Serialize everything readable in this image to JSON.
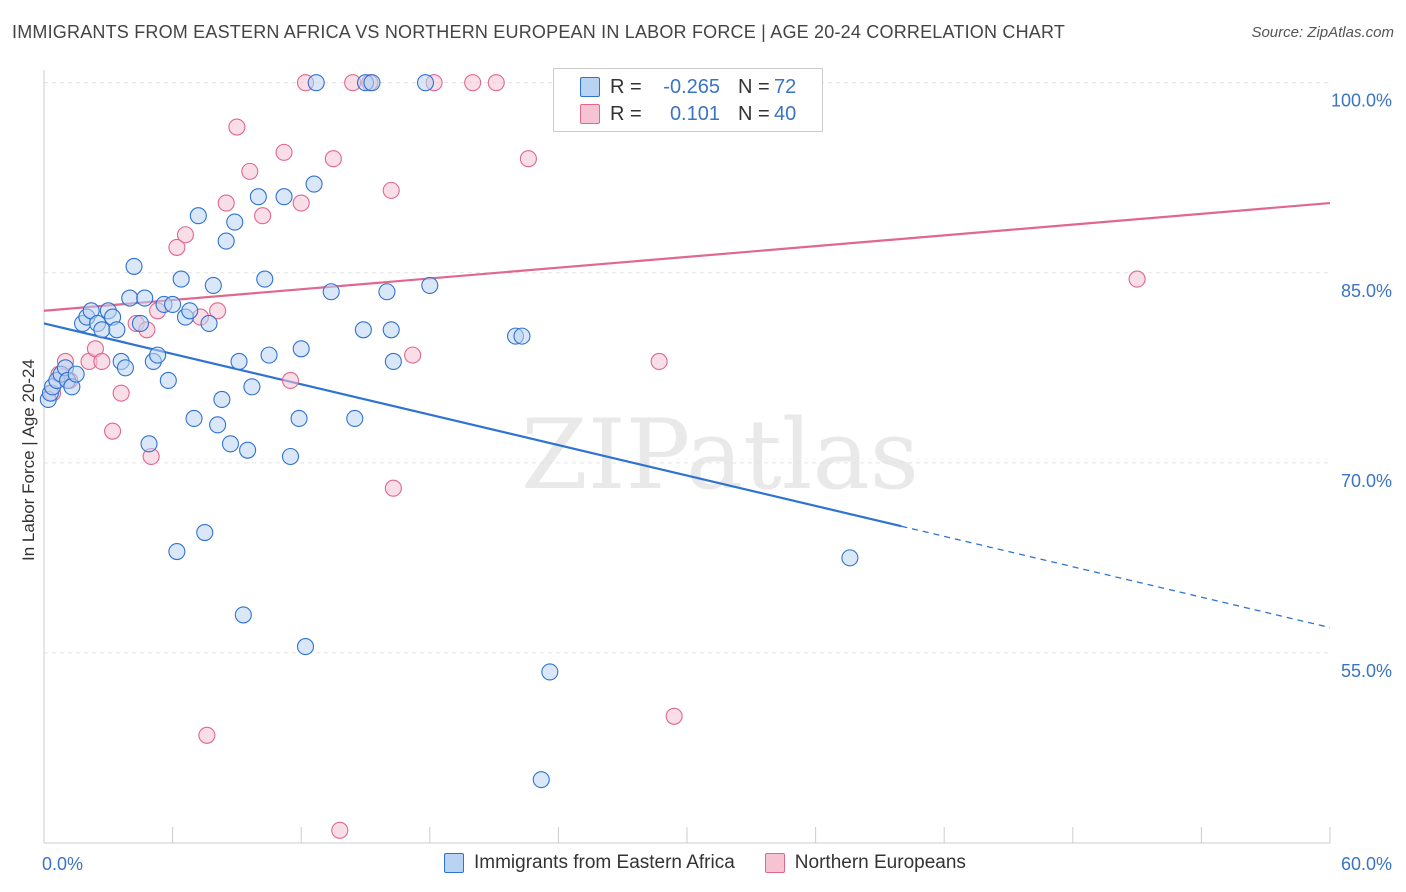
{
  "title": "IMMIGRANTS FROM EASTERN AFRICA VS NORTHERN EUROPEAN IN LABOR FORCE | AGE 20-24 CORRELATION CHART",
  "source": "Source: ZipAtlas.com",
  "watermark": "ZIPatlas",
  "colors": {
    "blue": "#2f73d2",
    "blue_fill": "#b9d3f2",
    "pink": "#e0678f",
    "pink_fill": "#f6c3d3",
    "axis_text": "#3a74c4",
    "grid": "#e3e3e3"
  },
  "legend": {
    "rows": [
      {
        "r_label": "R =",
        "r_value": "-0.265",
        "n_label": "N =",
        "n_value": "72",
        "series": "blue"
      },
      {
        "r_label": "R =",
        "r_value": "0.101",
        "n_label": "N =",
        "n_value": "40",
        "series": "pink"
      }
    ]
  },
  "bottom_legend": {
    "blue_label": "Immigrants from Eastern Africa",
    "pink_label": "Northern Europeans"
  },
  "chart_data": {
    "type": "scatter",
    "title": "IMMIGRANTS FROM EASTERN AFRICA VS NORTHERN EUROPEAN IN LABOR FORCE | AGE 20-24 CORRELATION CHART",
    "xlabel": "",
    "ylabel": "In Labor Force | Age 20-24",
    "xlim": [
      0,
      60
    ],
    "ylim": [
      40,
      101
    ],
    "x_tick_labels": [
      {
        "value": 0,
        "label": "0.0%"
      },
      {
        "value": 60,
        "label": "60.0%"
      }
    ],
    "y_tick_labels": [
      {
        "value": 100,
        "label": "100.0%"
      },
      {
        "value": 85,
        "label": "85.0%"
      },
      {
        "value": 70,
        "label": "70.0%"
      },
      {
        "value": 55,
        "label": "55.0%"
      }
    ],
    "grid": true,
    "series": [
      {
        "name": "Immigrants from Eastern Africa",
        "color": "blue",
        "trend": {
          "x0": 0,
          "y0": 81.0,
          "x1": 40,
          "y1": 65.0,
          "dash_to_x": 60,
          "dash_to_y": 57.0
        },
        "points": [
          [
            0.2,
            75.0
          ],
          [
            0.3,
            75.5
          ],
          [
            0.4,
            76.0
          ],
          [
            0.6,
            76.5
          ],
          [
            0.8,
            77.0
          ],
          [
            1.0,
            77.5
          ],
          [
            1.1,
            76.5
          ],
          [
            1.3,
            76.0
          ],
          [
            1.5,
            77.0
          ],
          [
            1.8,
            81.0
          ],
          [
            2.0,
            81.5
          ],
          [
            2.2,
            82.0
          ],
          [
            2.5,
            81.0
          ],
          [
            2.7,
            80.5
          ],
          [
            3.0,
            82.0
          ],
          [
            3.2,
            81.5
          ],
          [
            3.4,
            80.5
          ],
          [
            3.6,
            78.0
          ],
          [
            3.8,
            77.5
          ],
          [
            4.0,
            83.0
          ],
          [
            4.2,
            85.5
          ],
          [
            4.5,
            81.0
          ],
          [
            4.7,
            83.0
          ],
          [
            4.9,
            71.5
          ],
          [
            5.1,
            78.0
          ],
          [
            5.3,
            78.5
          ],
          [
            5.6,
            82.5
          ],
          [
            5.8,
            76.5
          ],
          [
            6.0,
            82.5
          ],
          [
            6.2,
            63.0
          ],
          [
            6.4,
            84.5
          ],
          [
            6.6,
            81.5
          ],
          [
            6.8,
            82.0
          ],
          [
            7.0,
            73.5
          ],
          [
            7.2,
            89.5
          ],
          [
            7.5,
            64.5
          ],
          [
            7.7,
            81.0
          ],
          [
            7.9,
            84.0
          ],
          [
            8.1,
            73.0
          ],
          [
            8.3,
            75.0
          ],
          [
            8.5,
            87.5
          ],
          [
            8.7,
            71.5
          ],
          [
            8.9,
            89.0
          ],
          [
            9.1,
            78.0
          ],
          [
            9.3,
            58.0
          ],
          [
            9.5,
            71.0
          ],
          [
            9.7,
            76.0
          ],
          [
            10.0,
            91.0
          ],
          [
            10.3,
            84.5
          ],
          [
            10.5,
            78.5
          ],
          [
            11.2,
            91.0
          ],
          [
            11.5,
            70.5
          ],
          [
            11.9,
            73.5
          ],
          [
            12.0,
            79.0
          ],
          [
            12.2,
            55.5
          ],
          [
            12.6,
            92.0
          ],
          [
            12.7,
            100.0
          ],
          [
            13.4,
            83.5
          ],
          [
            14.5,
            73.5
          ],
          [
            14.9,
            80.5
          ],
          [
            15.0,
            100.0
          ],
          [
            15.3,
            100.0
          ],
          [
            16.0,
            83.5
          ],
          [
            16.2,
            80.5
          ],
          [
            16.3,
            78.0
          ],
          [
            18.0,
            84.0
          ],
          [
            17.8,
            100.0
          ],
          [
            22.0,
            80.0
          ],
          [
            22.3,
            80.0
          ],
          [
            23.2,
            45.0
          ],
          [
            23.6,
            53.5
          ],
          [
            37.6,
            62.5
          ]
        ]
      },
      {
        "name": "Northern Europeans",
        "color": "pink",
        "trend": {
          "x0": 0,
          "y0": 82.0,
          "x1": 60,
          "y1": 90.5
        },
        "points": [
          [
            0.4,
            75.5
          ],
          [
            0.7,
            77.0
          ],
          [
            1.0,
            78.0
          ],
          [
            1.2,
            76.5
          ],
          [
            2.1,
            78.0
          ],
          [
            2.4,
            79.0
          ],
          [
            2.7,
            78.0
          ],
          [
            3.2,
            72.5
          ],
          [
            3.6,
            75.5
          ],
          [
            4.3,
            81.0
          ],
          [
            4.8,
            80.5
          ],
          [
            5.0,
            70.5
          ],
          [
            5.3,
            82.0
          ],
          [
            6.2,
            87.0
          ],
          [
            6.6,
            88.0
          ],
          [
            7.3,
            81.5
          ],
          [
            7.6,
            48.5
          ],
          [
            8.1,
            82.0
          ],
          [
            8.5,
            90.5
          ],
          [
            9.0,
            96.5
          ],
          [
            9.6,
            93.0
          ],
          [
            10.2,
            89.5
          ],
          [
            11.2,
            94.5
          ],
          [
            11.5,
            76.5
          ],
          [
            12.0,
            90.5
          ],
          [
            12.2,
            100.0
          ],
          [
            13.5,
            94.0
          ],
          [
            13.8,
            41.0
          ],
          [
            14.4,
            100.0
          ],
          [
            15.2,
            100.0
          ],
          [
            16.2,
            91.5
          ],
          [
            16.3,
            68.0
          ],
          [
            17.2,
            78.5
          ],
          [
            18.2,
            100.0
          ],
          [
            20.0,
            100.0
          ],
          [
            21.1,
            100.0
          ],
          [
            22.6,
            94.0
          ],
          [
            28.7,
            78.0
          ],
          [
            29.4,
            50.0
          ],
          [
            51.0,
            84.5
          ]
        ]
      }
    ]
  }
}
